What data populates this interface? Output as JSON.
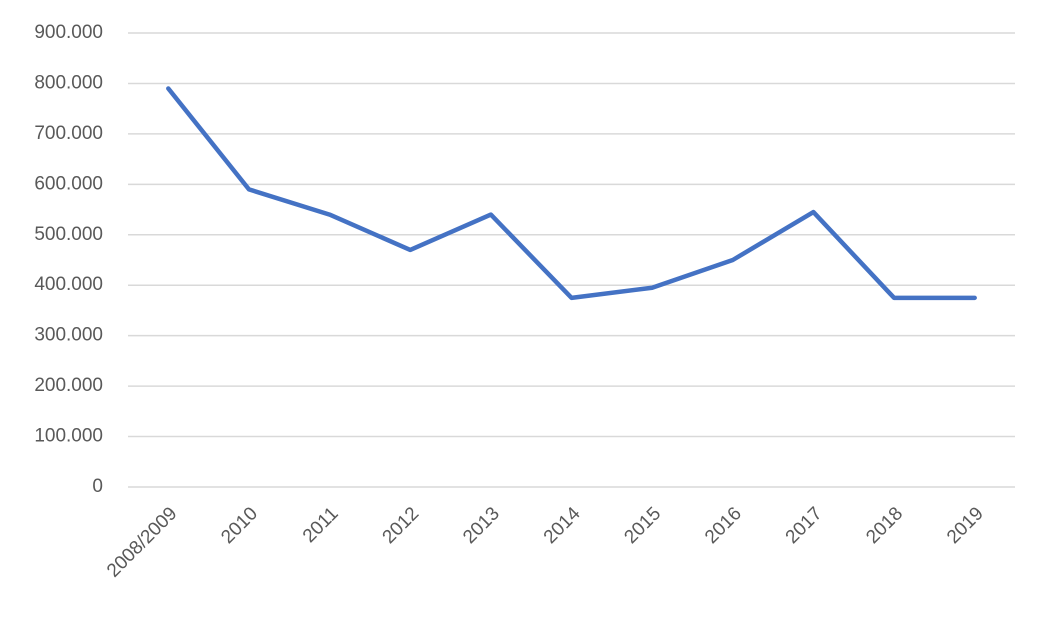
{
  "chart_data": {
    "type": "line",
    "categories": [
      "2008/2009",
      "2010",
      "2011",
      "2012",
      "2013",
      "2014",
      "2015",
      "2016",
      "2017",
      "2018",
      "2019"
    ],
    "values": [
      790000,
      590000,
      540000,
      470000,
      540000,
      375000,
      395000,
      450000,
      545000,
      375000,
      375000
    ],
    "color": "#4472c4",
    "ylim": [
      0,
      900000
    ],
    "yticks": [
      0,
      {
        "value": 100000,
        "label": "100.000"
      },
      {
        "value": 200000,
        "label": "200.000"
      },
      {
        "value": 300000,
        "label": "300.000"
      },
      {
        "value": 400000,
        "label": "400.000"
      },
      {
        "value": 500000,
        "label": "500.000"
      },
      {
        "value": 600000,
        "label": "600.000"
      },
      {
        "value": 700000,
        "label": "700.000"
      },
      {
        "value": 800000,
        "label": "800.000"
      },
      {
        "value": 900000,
        "label": "900.000"
      }
    ],
    "grid": true
  }
}
